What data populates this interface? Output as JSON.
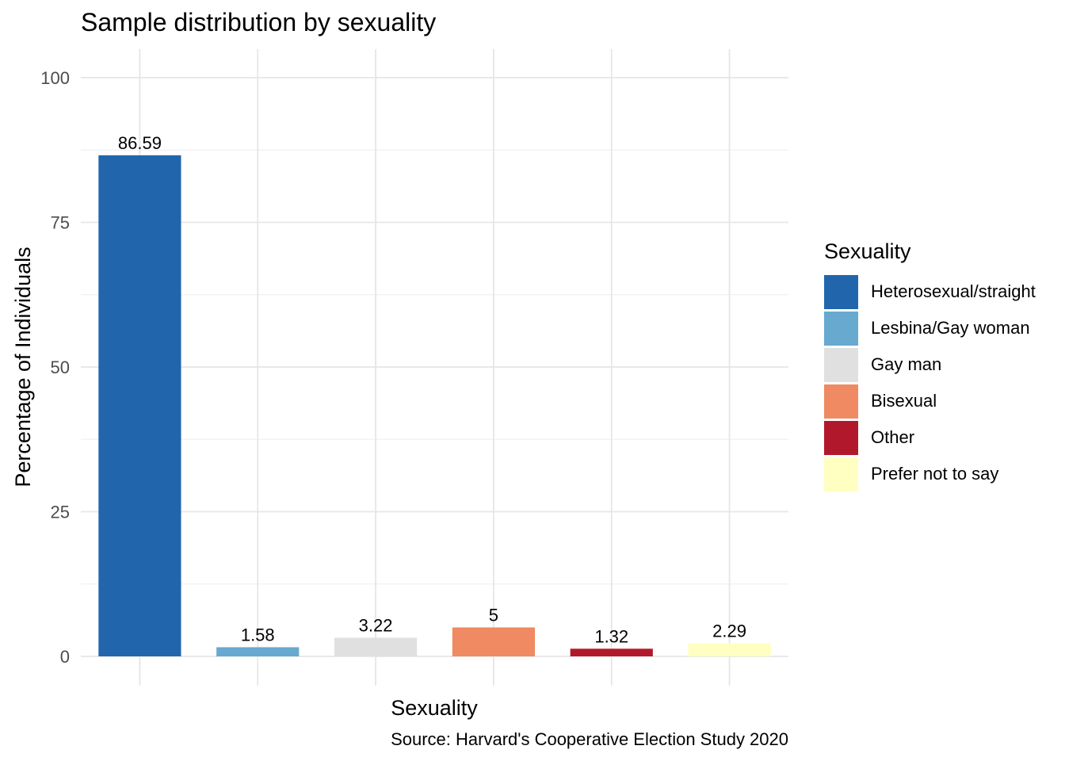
{
  "chart_data": {
    "type": "bar",
    "title": "Sample distribution by sexuality",
    "xlabel": "Sexuality",
    "ylabel": "Percentage of Individuals",
    "caption": "Source: Harvard's Cooperative Election Study 2020",
    "categories": [
      "Heterosexual/straight",
      "Lesbina/Gay woman",
      "Gay man",
      "Bisexual",
      "Other",
      "Prefer not to say"
    ],
    "values": [
      86.59,
      1.58,
      3.22,
      5,
      1.32,
      2.29
    ],
    "value_labels": [
      "86.59",
      "1.58",
      "3.22",
      "5",
      "1.32",
      "2.29"
    ],
    "colors": [
      "#2166ac",
      "#67a9cf",
      "#e0e0e0",
      "#ef8a62",
      "#b2182b",
      "#ffffc1"
    ],
    "ylim": [
      0,
      100
    ],
    "yticks": [
      0,
      25,
      50,
      75,
      100
    ],
    "ytick_labels": [
      "0",
      "25",
      "50",
      "75",
      "100"
    ],
    "grid": true,
    "x_tick_labels_shown": false,
    "legend": {
      "title": "Sexuality",
      "position": "right"
    }
  }
}
